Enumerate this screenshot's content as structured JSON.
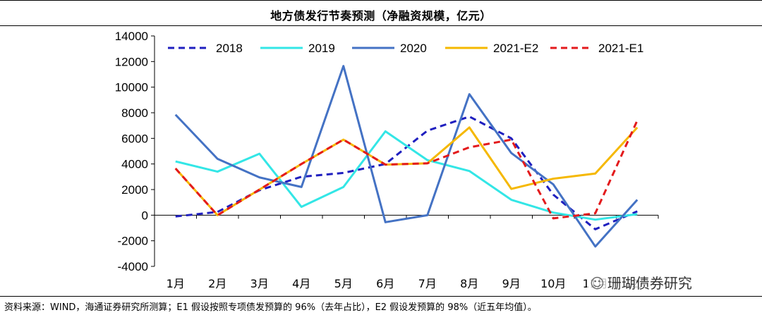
{
  "title": "地方债发行节奏预测（净融资规模，亿元）",
  "source": "资料来源：WIND，海通证券研究所测算；E1 假设按照专项债发预算的 96%（去年占比），E2 假设发预算的 98%（近五年均值）。",
  "watermark": "珊瑚债券研究",
  "chart_data": {
    "type": "line",
    "categories": [
      "1月",
      "2月",
      "3月",
      "4月",
      "5月",
      "6月",
      "7月",
      "8月",
      "9月",
      "10月",
      "11月",
      "12月"
    ],
    "ylim": [
      -4000,
      14000
    ],
    "yticks": [
      -4000,
      -2000,
      0,
      2000,
      4000,
      6000,
      8000,
      10000,
      12000,
      14000
    ],
    "legend_position": "top",
    "series": [
      {
        "name": "2018",
        "color": "#1f1fbf",
        "dash": "dashed",
        "values": [
          -100,
          250,
          1950,
          3000,
          3300,
          4000,
          6600,
          7700,
          6000,
          1600,
          -1100,
          300
        ]
      },
      {
        "name": "2019",
        "color": "#33e6e6",
        "dash": "solid",
        "values": [
          4200,
          3400,
          4800,
          650,
          2200,
          6550,
          4300,
          3450,
          1200,
          200,
          -350,
          80
        ]
      },
      {
        "name": "2020",
        "color": "#4472c4",
        "dash": "solid",
        "values": [
          7850,
          4400,
          2950,
          2200,
          11650,
          -550,
          0,
          9450,
          4850,
          2400,
          -2450,
          1200
        ]
      },
      {
        "name": "2021-E2",
        "color": "#f5b800",
        "dash": "solid",
        "values": [
          3650,
          0,
          2000,
          4000,
          5900,
          3950,
          4050,
          6850,
          2050,
          2850,
          3250,
          6850
        ]
      },
      {
        "name": "2021-E1",
        "color": "#e31a1c",
        "dash": "dashed",
        "values": [
          3650,
          0,
          2000,
          4000,
          5900,
          3950,
          4050,
          5300,
          5900,
          -250,
          150,
          7400
        ]
      }
    ]
  }
}
